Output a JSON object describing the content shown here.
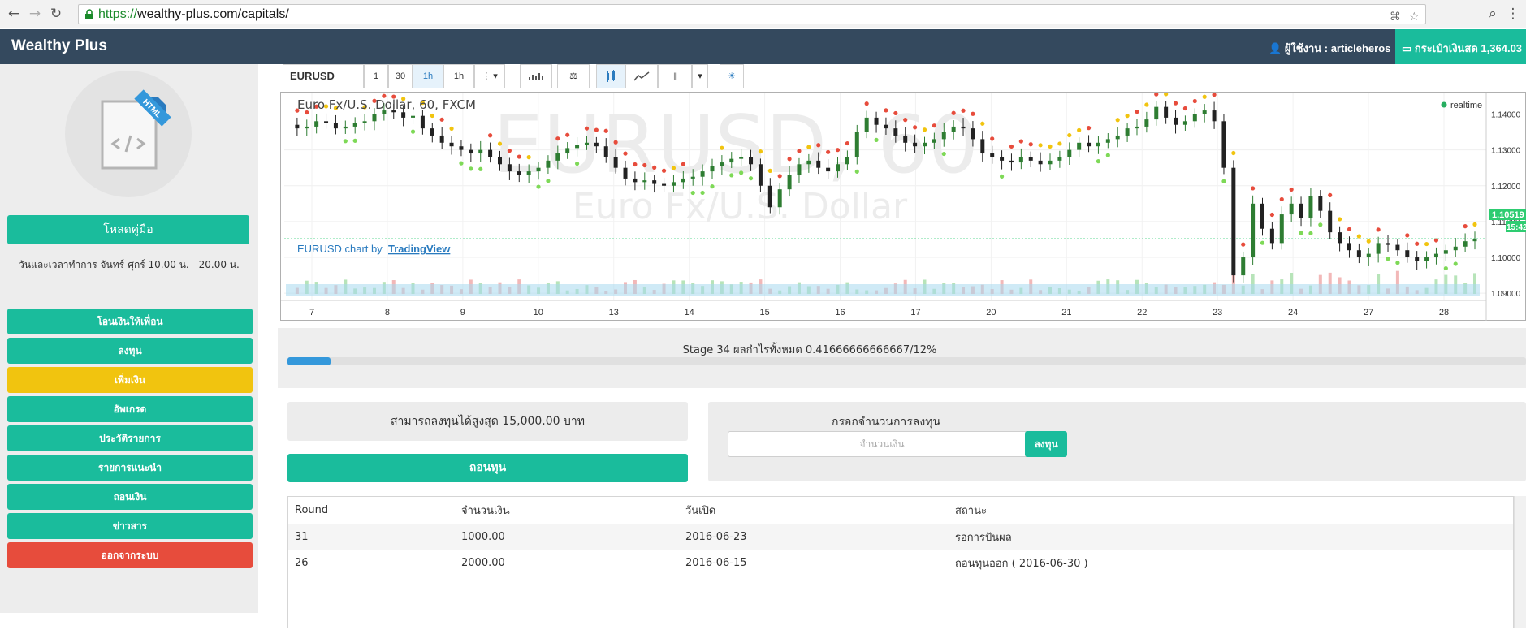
{
  "browser": {
    "url_scheme": "https://",
    "url_rest": "wealthy-plus.com/capitals/"
  },
  "header": {
    "brand": "Wealthy Plus",
    "user_label": "ผู้ใช้งาน : articleheros",
    "wallet_label": "กระเป๋าเงินสด 1,364.03"
  },
  "sidebar": {
    "logo_text": "HTML",
    "download_label": "โหลดคู่มือ",
    "hours": "วันและเวลาทำการ จันทร์-ศุกร์ 10.00 น. - 20.00 น.",
    "menu": [
      {
        "label": "โอนเงินให้เพื่อน",
        "color": "#1abc9c"
      },
      {
        "label": "ลงทุน",
        "color": "#1abc9c"
      },
      {
        "label": "เพิ่มเงิน",
        "color": "#f1c40f"
      },
      {
        "label": "อัพเกรด",
        "color": "#1abc9c"
      },
      {
        "label": "ประวัติรายการ",
        "color": "#1abc9c"
      },
      {
        "label": "รายการแนะนำ",
        "color": "#1abc9c"
      },
      {
        "label": "ถอนเงิน",
        "color": "#1abc9c"
      },
      {
        "label": "ข่าวสาร",
        "color": "#1abc9c"
      },
      {
        "label": "ออกจากระบบ",
        "color": "#e74c3c"
      }
    ]
  },
  "toolbar": {
    "symbol": "EURUSD",
    "intervals": [
      "1",
      "30",
      "1h",
      "1h"
    ]
  },
  "chart_data": {
    "type": "candlestick",
    "title": "Euro Fx/U.S. Dollar, 60, FXCM",
    "watermark_symbol": "EURUSD, 60",
    "watermark_name": "Euro Fx/U.S. Dollar",
    "credit_prefix": "EURUSD chart by",
    "credit_link": "TradingView",
    "status": "realtime",
    "x_ticks": [
      "7",
      "8",
      "9",
      "10",
      "13",
      "14",
      "15",
      "16",
      "17",
      "20",
      "21",
      "22",
      "23",
      "24",
      "27",
      "28"
    ],
    "y_ticks": [
      "1.14000",
      "1.13000",
      "1.12000",
      "1.11000",
      "1.10000",
      "1.09000"
    ],
    "ylim": [
      1.088,
      1.146
    ],
    "current_price": "1.10519",
    "current_value": 1.10519,
    "countdown": "15:42",
    "close_series": [
      1.137,
      1.136,
      1.1365,
      1.138,
      1.1375,
      1.136,
      1.1365,
      1.1375,
      1.138,
      1.14,
      1.141,
      1.1405,
      1.139,
      1.1395,
      1.136,
      1.134,
      1.132,
      1.131,
      1.13,
      1.129,
      1.13,
      1.128,
      1.126,
      1.124,
      1.123,
      1.124,
      1.125,
      1.127,
      1.129,
      1.1305,
      1.1315,
      1.132,
      1.131,
      1.128,
      1.125,
      1.122,
      1.121,
      1.1215,
      1.1205,
      1.12,
      1.121,
      1.122,
      1.1225,
      1.124,
      1.1255,
      1.1265,
      1.1275,
      1.128,
      1.126,
      1.12,
      1.114,
      1.119,
      1.123,
      1.126,
      1.127,
      1.125,
      1.124,
      1.126,
      1.128,
      1.135,
      1.139,
      1.137,
      1.136,
      1.134,
      1.132,
      1.131,
      1.132,
      1.133,
      1.135,
      1.1365,
      1.136,
      1.133,
      1.129,
      1.128,
      1.127,
      1.1265,
      1.128,
      1.127,
      1.126,
      1.127,
      1.128,
      1.13,
      1.132,
      1.131,
      1.132,
      1.133,
      1.134,
      1.136,
      1.1365,
      1.1385,
      1.142,
      1.139,
      1.137,
      1.138,
      1.14,
      1.141,
      1.138,
      1.125,
      1.095,
      1.1,
      1.115,
      1.108,
      1.104,
      1.112,
      1.115,
      1.111,
      1.117,
      1.113,
      1.107,
      1.104,
      1.102,
      1.1,
      1.101,
      1.104,
      1.1035,
      1.102,
      1.1,
      1.099,
      1.1,
      1.101,
      1.102,
      1.103,
      1.1045,
      1.1052
    ]
  },
  "progress": {
    "label": "Stage 34 ผลกำไรทั้งหมด 0.41666666666667/12%",
    "percent": 3.5
  },
  "invest": {
    "max_label": "สามารถลงทุนได้สูงสุด 15,000.00 บาท",
    "withdraw_label": "ถอนทุน",
    "input_label": "กรอกจำนวนการลงทุน",
    "input_placeholder": "จำนวนเงิน",
    "submit_label": "ลงทุน"
  },
  "table": {
    "headers": [
      "Round",
      "จำนวนเงิน",
      "วันเปิด",
      "สถานะ"
    ],
    "rows": [
      [
        "31",
        "1000.00",
        "2016-06-23",
        "รอการปันผล"
      ],
      [
        "26",
        "2000.00",
        "2016-06-15",
        "ถอนทุนออก ( 2016-06-30 )"
      ]
    ]
  },
  "colors": {
    "header_bg": "#34495e",
    "accent": "#1abc9c",
    "warning": "#f1c40f",
    "danger": "#e74c3c",
    "progress": "#3498db"
  }
}
